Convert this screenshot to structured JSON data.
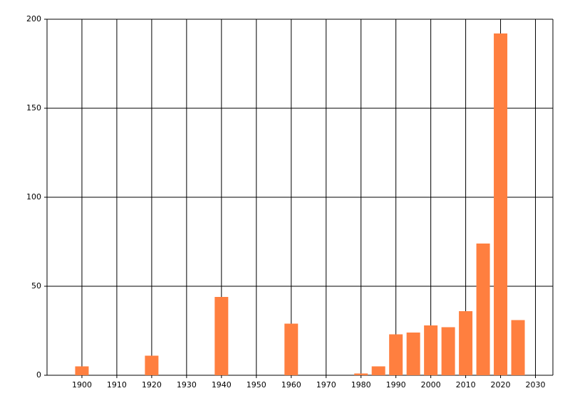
{
  "chart_data": {
    "type": "bar",
    "x": [
      1900,
      1920,
      1940,
      1960,
      1980,
      1985,
      1990,
      1995,
      2000,
      2005,
      2010,
      2015,
      2020,
      2025
    ],
    "values": [
      5,
      11,
      44,
      29,
      1,
      5,
      23,
      24,
      28,
      27,
      36,
      74,
      192,
      31
    ],
    "color": "#ff7f3f",
    "xlim": [
      1890,
      2035
    ],
    "xticks": [
      1900,
      1910,
      1920,
      1930,
      1940,
      1950,
      1960,
      1970,
      1980,
      1990,
      2000,
      2010,
      2020,
      2030
    ],
    "ylim": [
      0,
      200
    ],
    "yticks": [
      0,
      50,
      100,
      150,
      200
    ],
    "grid": true
  }
}
